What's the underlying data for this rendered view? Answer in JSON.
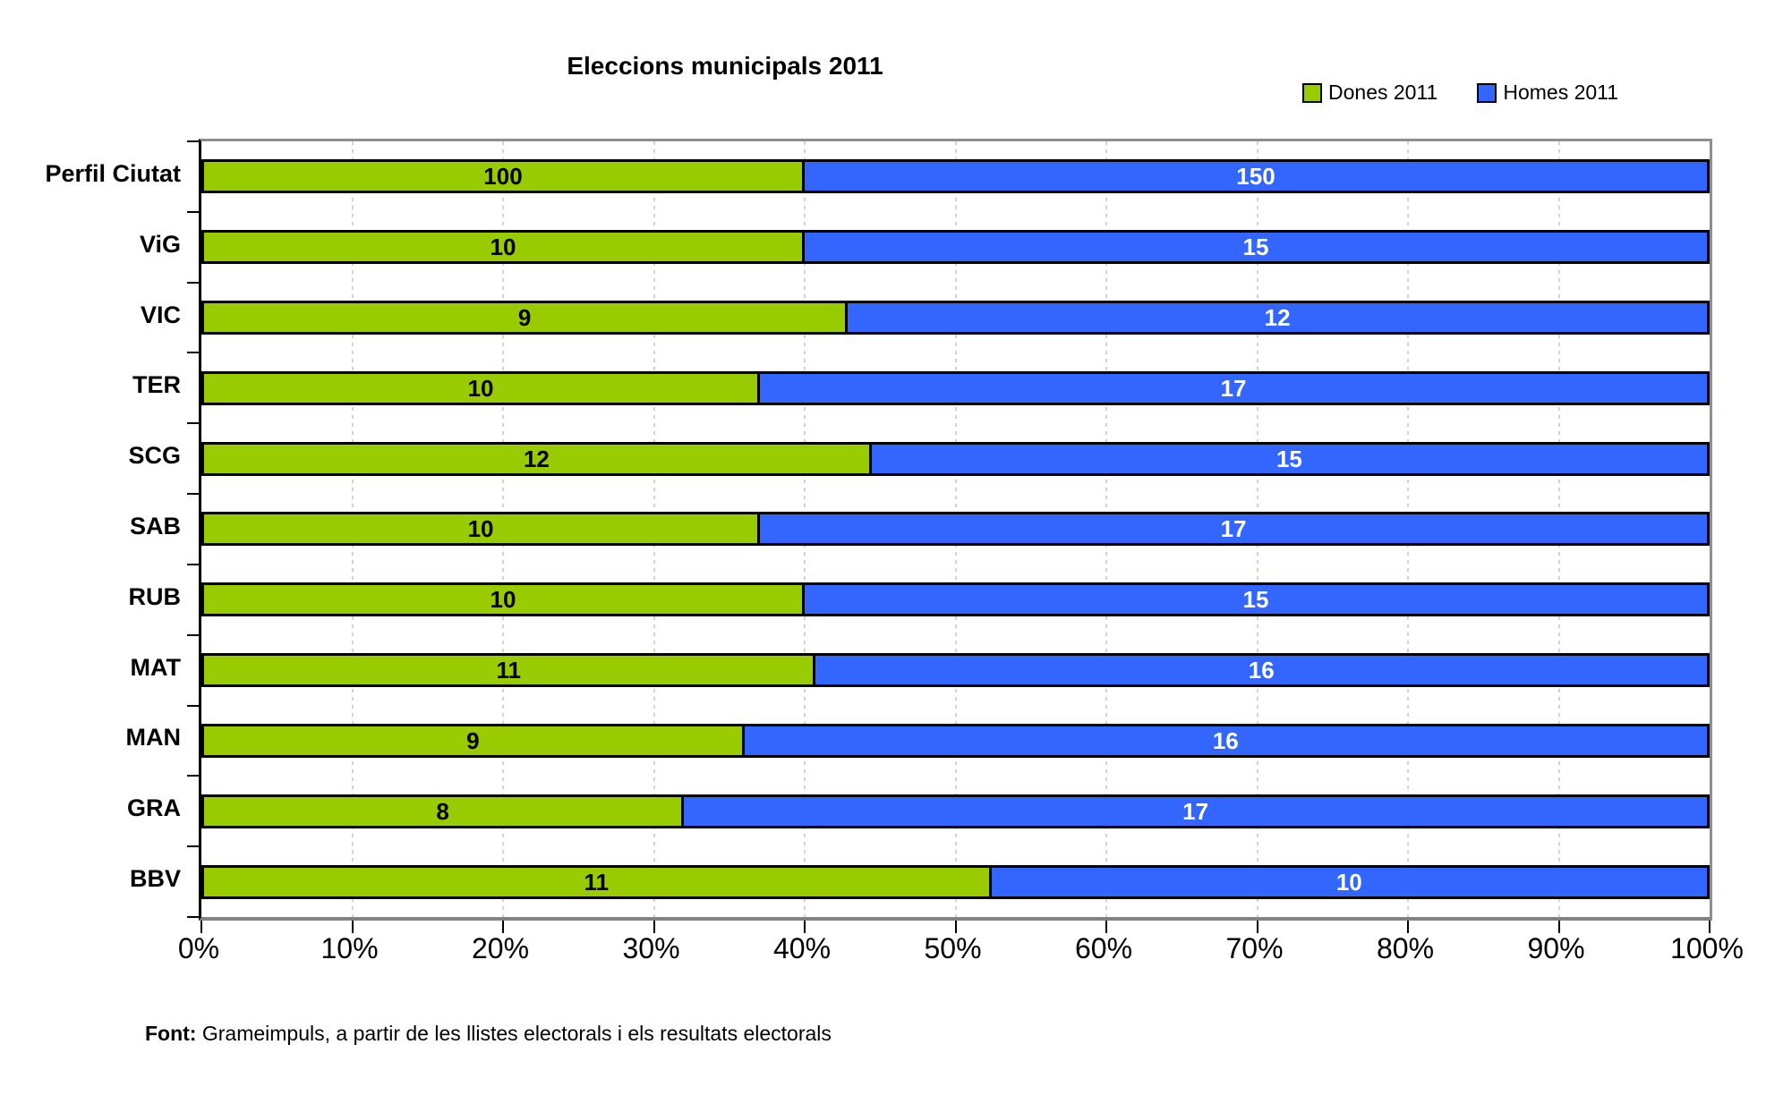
{
  "chart": {
    "title": "Eleccions municipals 2011",
    "legend_position": "top-right",
    "plot_border_color": "#8f8f8f",
    "axis_color": "#000000",
    "gridline_color": "#d2d2d2",
    "bar_border_color": "#000000"
  },
  "chart_data": {
    "type": "bar",
    "orientation": "horizontal",
    "stacked": true,
    "normalized": "percent",
    "title": "Eleccions municipals 2011",
    "xlabel": "",
    "ylabel": "",
    "grid": true,
    "legend_position": "top-right",
    "xlim": [
      0,
      100
    ],
    "x_ticks": [
      "0%",
      "10%",
      "20%",
      "30%",
      "40%",
      "50%",
      "60%",
      "70%",
      "80%",
      "90%",
      "100%"
    ],
    "categories": [
      "Perfil Ciutat",
      "ViG",
      "VIC",
      "TER",
      "SCG",
      "SAB",
      "RUB",
      "MAT",
      "MAN",
      "GRA",
      "BBV"
    ],
    "series": [
      {
        "name": "Dones 2011",
        "color": "#99CC00",
        "label_color": "#000000",
        "values": [
          100,
          10,
          9,
          10,
          12,
          10,
          10,
          11,
          9,
          8,
          11
        ]
      },
      {
        "name": "Homes 2011",
        "color": "#3366FF",
        "label_color": "#FFFFFF",
        "values": [
          150,
          15,
          12,
          17,
          15,
          17,
          15,
          16,
          16,
          17,
          10
        ]
      }
    ]
  },
  "footer": {
    "label": "Font:",
    "text": " Grameimpuls, a partir de les llistes electorals i els resultats electorals"
  }
}
